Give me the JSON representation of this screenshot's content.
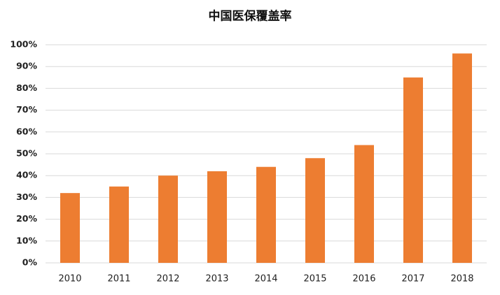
{
  "chart_data": {
    "type": "bar",
    "title": "中国医保覆盖率",
    "categories": [
      "2010",
      "2011",
      "2012",
      "2013",
      "2014",
      "2015",
      "2016",
      "2017",
      "2018"
    ],
    "values": [
      32,
      35,
      40,
      42,
      44,
      48,
      54,
      85,
      96
    ],
    "color": "#ed7d31",
    "ylim": [
      0,
      100
    ],
    "yticks": [
      {
        "value": 0,
        "label": "0%"
      },
      {
        "value": 10,
        "label": "10%"
      },
      {
        "value": 20,
        "label": "20%"
      },
      {
        "value": 30,
        "label": "30%"
      },
      {
        "value": 40,
        "label": "40%"
      },
      {
        "value": 50,
        "label": "50%"
      },
      {
        "value": 60,
        "label": "60%"
      },
      {
        "value": 70,
        "label": "70%"
      },
      {
        "value": 80,
        "label": "80%"
      },
      {
        "value": 90,
        "label": "90%"
      },
      {
        "value": 100,
        "label": "100%"
      }
    ],
    "grid": true
  }
}
